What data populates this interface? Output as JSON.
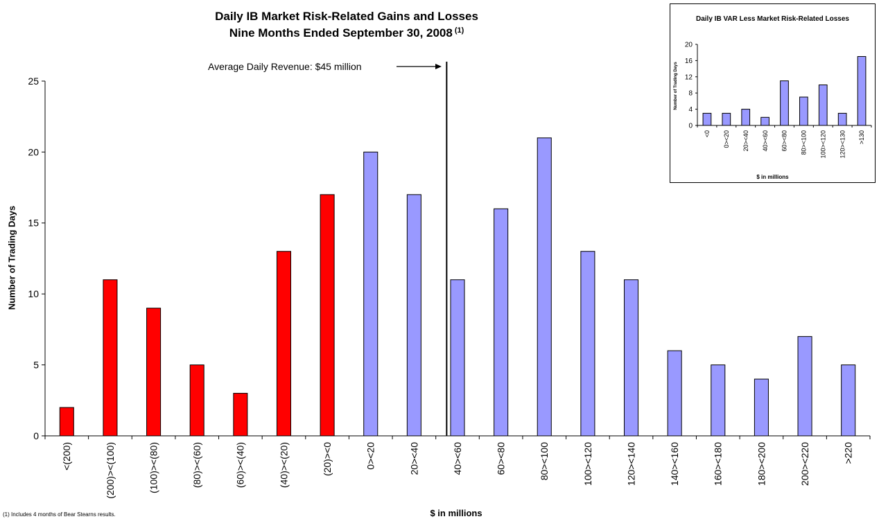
{
  "title_line1": "Daily IB Market Risk-Related Gains and Losses",
  "title_line2": "Nine Months Ended September 30, 2008",
  "title_footnote_marker": "(1)",
  "annotation": "Average Daily Revenue: $45 million",
  "footnote": "(1) Includes 4 months of Bear Stearns results.",
  "colors": {
    "loss": "#ff0000",
    "gain": "#9999ff",
    "axis": "#000000"
  },
  "chart_data": [
    {
      "type": "bar",
      "title": "Daily IB Market Risk-Related Gains and Losses Nine Months Ended September 30, 2008 (1)",
      "xlabel": "$ in millions",
      "ylabel": "Number of Trading Days",
      "ylim": [
        0,
        25
      ],
      "yticks": [
        0,
        5,
        10,
        15,
        20,
        25
      ],
      "grid": false,
      "legend": "none",
      "categories": [
        "<(200)",
        "(200)><(100)",
        "(100)><(80)",
        "(80)><(60)",
        "(60)><(40)",
        "(40)><(20)",
        "(20)><0",
        "0><20",
        "20><40",
        "40><60",
        "60><80",
        "80><100",
        "100><120",
        "120><140",
        "140><160",
        "160><180",
        "180><200",
        "200><220",
        ">220"
      ],
      "values": [
        2,
        11,
        9,
        5,
        3,
        13,
        17,
        20,
        17,
        11,
        16,
        21,
        13,
        11,
        6,
        5,
        4,
        7,
        5
      ],
      "loss_bucket_count": 7,
      "reference_line": {
        "x": 45,
        "label": "Average Daily Revenue: $45 million"
      }
    },
    {
      "type": "bar",
      "title": "Daily IB VAR Less Market Risk-Related Losses",
      "xlabel": "$ in millions",
      "ylabel": "Number of Trading Days",
      "ylim": [
        0,
        20
      ],
      "yticks": [
        0,
        4,
        8,
        12,
        16,
        20
      ],
      "grid": false,
      "legend": "none",
      "placement": "top-right",
      "categories": [
        "<0",
        "0><20",
        "20><40",
        "40><60",
        "60><80",
        "80><100",
        "100><120",
        "120><130",
        ">130"
      ],
      "values": [
        3,
        3,
        4,
        2,
        11,
        7,
        10,
        3,
        17
      ]
    }
  ]
}
